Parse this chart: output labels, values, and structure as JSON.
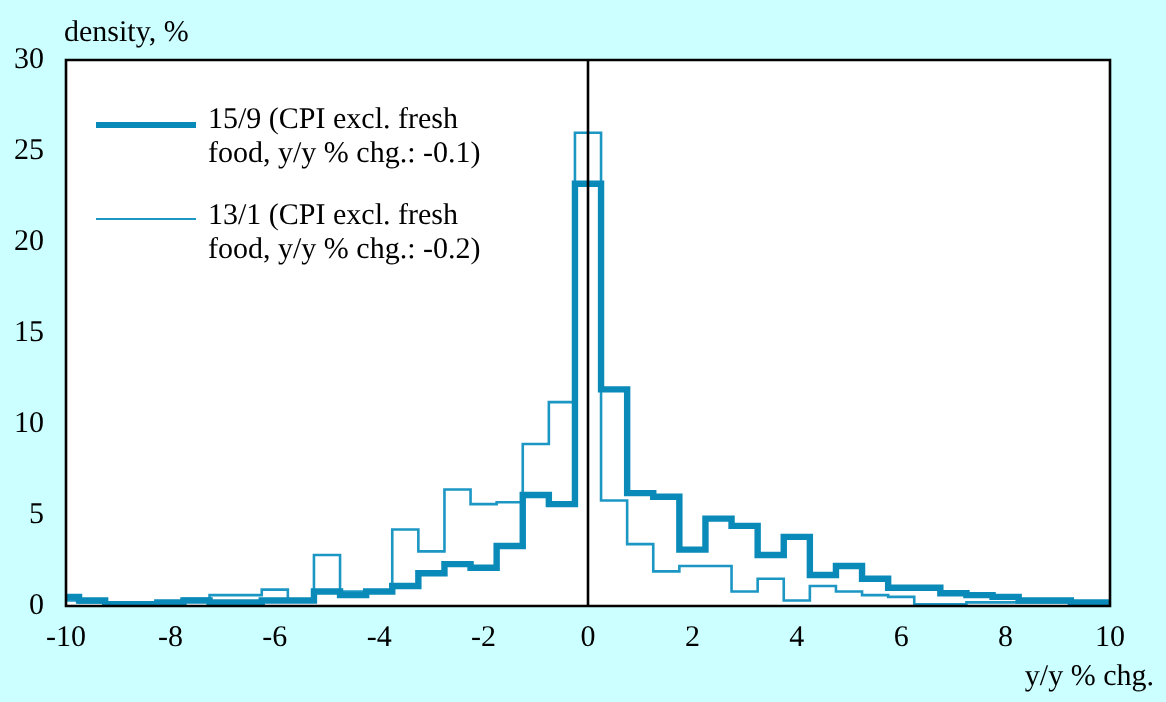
{
  "chart_data": {
    "type": "step",
    "x": [
      -10,
      -9.5,
      -9,
      -8.5,
      -8,
      -7.5,
      -7,
      -6.5,
      -6,
      -5.5,
      -5,
      -4.5,
      -4,
      -3.5,
      -3,
      -2.5,
      -2,
      -1.5,
      -1,
      -0.5,
      0,
      0.5,
      1,
      1.5,
      2,
      2.5,
      3,
      3.5,
      4,
      4.5,
      5,
      5.5,
      6,
      6.5,
      7,
      7.5,
      8,
      8.5,
      9,
      9.5,
      10
    ],
    "series": [
      {
        "name": "15/9 (CPI excl. fresh food, y/y % chg.: -0.1)",
        "color": "#0a8ab8",
        "values": [
          0.5,
          0.3,
          0.1,
          0.1,
          0.2,
          0.3,
          0.2,
          0.2,
          0.3,
          0.3,
          0.8,
          0.6,
          0.8,
          1.1,
          1.8,
          2.3,
          2.1,
          3.3,
          6.1,
          5.6,
          23.2,
          11.9,
          6.2,
          6.0,
          3.1,
          4.8,
          4.4,
          2.8,
          3.8,
          1.7,
          2.2,
          1.5,
          1.0,
          1.0,
          0.7,
          0.6,
          0.5,
          0.3,
          0.3,
          0.2,
          0.2
        ]
      },
      {
        "name": "13/1 (CPI excl. fresh food, y/y % chg.: -0.2)",
        "color": "#1c97c4",
        "values": [
          0.3,
          0.2,
          0.1,
          0.1,
          0.2,
          0.4,
          0.6,
          0.6,
          0.9,
          0.3,
          2.8,
          0.8,
          0.8,
          4.2,
          3.0,
          6.4,
          5.6,
          5.7,
          8.9,
          11.2,
          26.0,
          5.8,
          3.4,
          1.9,
          2.2,
          2.2,
          0.8,
          1.5,
          0.3,
          1.1,
          0.8,
          0.6,
          0.5,
          0.1,
          0.1,
          0.2,
          0.2,
          0.2,
          0.2,
          0.1,
          0.1
        ]
      }
    ],
    "xlim": [
      -10,
      10
    ],
    "xticks": [
      -10,
      -8,
      -6,
      -4,
      -2,
      0,
      2,
      4,
      6,
      8,
      10
    ],
    "ylim": [
      0,
      30
    ],
    "yticks": [
      0,
      5,
      10,
      15,
      20,
      25,
      30
    ],
    "ylabel": "density, %",
    "xlabel": "y/y % chg.",
    "ref_lines": [
      {
        "axis": "x",
        "value": 0,
        "color": "#000000"
      }
    ],
    "grid": false,
    "legend": "top left"
  }
}
